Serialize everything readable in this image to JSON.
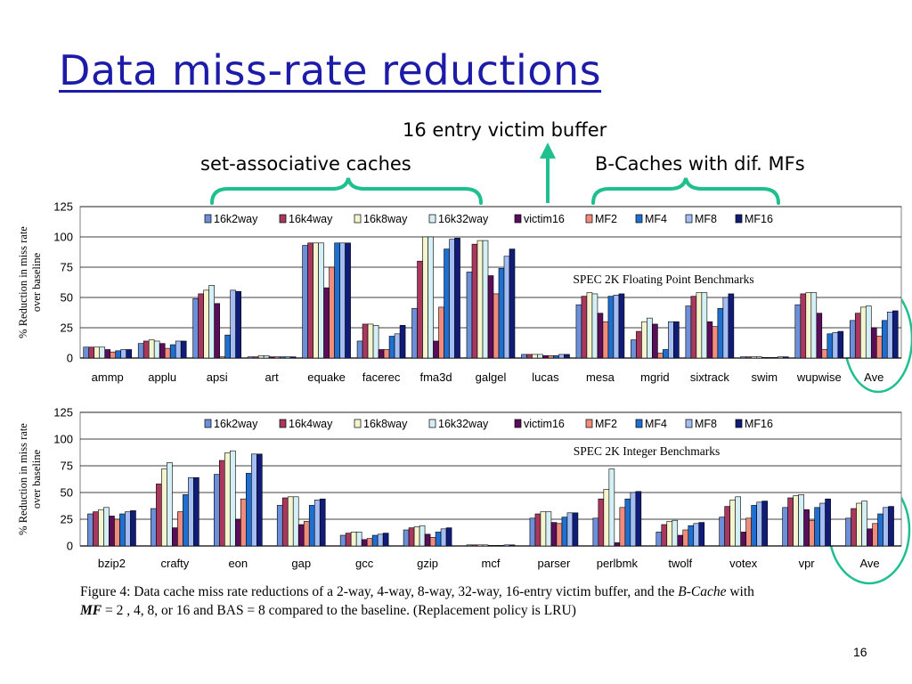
{
  "slide": {
    "title": "Data miss-rate reductions",
    "callouts": {
      "victim": "16 entry victim buffer",
      "set_assoc": "set-associative caches",
      "bcache": "B-Caches with dif. MFs"
    },
    "caption": {
      "line1_a": "Figure 4: Data cache miss rate reductions of a 2-way, 4-way, 8-way, 32-way, 16-entry victim buffer, and the ",
      "line1_em": "B-Cache",
      "line1_b": " with",
      "line2_em": "MF",
      "line2_b": " = 2 , 4, 8, or 16 and BAS = 8 compared to the baseline. (Replacement policy is LRU)"
    },
    "page_number": "16",
    "colors": {
      "title": "#1c1ca8",
      "bracket": "#1fbf8f",
      "highlight": "#1fbf8f"
    }
  },
  "chart_data": [
    {
      "type": "bar",
      "annotation": "SPEC 2K Floating Point Benchmarks",
      "ylabel": "% Reduction in miss rate over baseline",
      "ylim": [
        0,
        125
      ],
      "yticks": [
        "125",
        "100",
        "75",
        "50",
        "25",
        "0"
      ],
      "legend_position": "top",
      "categories": [
        "ammp",
        "applu",
        "apsi",
        "art",
        "equake",
        "facerec",
        "fma3d",
        "galgel",
        "lucas",
        "mesa",
        "mgrid",
        "sixtrack",
        "swim",
        "wupwise",
        "Ave"
      ],
      "series": [
        {
          "name": "16k2way",
          "color": "#6b8fd8",
          "values": [
            9,
            12,
            49,
            1,
            93,
            14,
            41,
            71,
            3,
            44,
            15,
            43,
            1,
            44,
            31
          ]
        },
        {
          "name": "16k4way",
          "color": "#a8385e",
          "values": [
            9,
            14,
            53,
            1,
            95,
            28,
            80,
            94,
            3,
            51,
            22,
            51,
            1,
            53,
            37
          ]
        },
        {
          "name": "16k8way",
          "color": "#f4f4cf",
          "values": [
            9,
            15,
            56,
            2,
            95,
            28,
            100,
            97,
            3,
            54,
            30,
            54,
            1,
            54,
            42
          ]
        },
        {
          "name": "16k32way",
          "color": "#d5f0f5",
          "values": [
            9,
            14,
            60,
            2,
            95,
            27,
            100,
            97,
            3,
            53,
            33,
            54,
            1,
            54,
            43
          ]
        },
        {
          "name": "victim16",
          "color": "#5a0e5a",
          "values": [
            7,
            12,
            45,
            1,
            58,
            7,
            14,
            68,
            2,
            37,
            28,
            30,
            0,
            37,
            25
          ]
        },
        {
          "name": "MF2",
          "color": "#f08c7c",
          "values": [
            5,
            8,
            1,
            1,
            75,
            7,
            42,
            53,
            2,
            30,
            4,
            26,
            0,
            7,
            18
          ]
        },
        {
          "name": "MF4",
          "color": "#1e6fcf",
          "values": [
            6,
            11,
            19,
            1,
            95,
            18,
            90,
            74,
            2,
            51,
            7,
            41,
            0,
            20,
            31
          ]
        },
        {
          "name": "MF8",
          "color": "#a4bdf2",
          "values": [
            7,
            14,
            56,
            1,
            95,
            20,
            98,
            84,
            3,
            52,
            30,
            50,
            1,
            21,
            38
          ]
        },
        {
          "name": "MF16",
          "color": "#101c78",
          "values": [
            7,
            14,
            55,
            1,
            95,
            27,
            99,
            90,
            3,
            53,
            30,
            53,
            1,
            22,
            39
          ]
        }
      ]
    },
    {
      "type": "bar",
      "annotation": "SPEC 2K Integer Benchmarks",
      "ylabel": "% Reduction in miss rate over baseline",
      "ylim": [
        0,
        125
      ],
      "yticks": [
        "125",
        "100",
        "75",
        "50",
        "25",
        "0"
      ],
      "legend_position": "top",
      "categories": [
        "bzip2",
        "crafty",
        "eon",
        "gap",
        "gcc",
        "gzip",
        "mcf",
        "parser",
        "perlbmk",
        "twolf",
        "votex",
        "vpr",
        "Ave"
      ],
      "series": [
        {
          "name": "16k2way",
          "color": "#6b8fd8",
          "values": [
            30,
            35,
            67,
            38,
            10,
            15,
            1,
            26,
            26,
            13,
            27,
            36,
            26
          ]
        },
        {
          "name": "16k4way",
          "color": "#a8385e",
          "values": [
            32,
            58,
            80,
            45,
            12,
            17,
            1,
            30,
            44,
            20,
            37,
            45,
            35
          ]
        },
        {
          "name": "16k8way",
          "color": "#f4f4cf",
          "values": [
            34,
            72,
            87,
            46,
            13,
            18,
            1,
            32,
            53,
            23,
            43,
            47,
            40
          ]
        },
        {
          "name": "16k32way",
          "color": "#d5f0f5",
          "values": [
            36,
            78,
            89,
            46,
            13,
            19,
            1,
            32,
            72,
            24,
            46,
            48,
            42
          ]
        },
        {
          "name": "victim16",
          "color": "#5a0e5a",
          "values": [
            28,
            17,
            25,
            20,
            6,
            11,
            0,
            22,
            3,
            10,
            13,
            34,
            16
          ]
        },
        {
          "name": "MF2",
          "color": "#f08c7c",
          "values": [
            25,
            32,
            44,
            23,
            7,
            8,
            0,
            21,
            36,
            15,
            26,
            24,
            21
          ]
        },
        {
          "name": "MF4",
          "color": "#1e6fcf",
          "values": [
            30,
            48,
            68,
            38,
            10,
            13,
            0,
            27,
            44,
            19,
            38,
            36,
            30
          ]
        },
        {
          "name": "MF8",
          "color": "#a4bdf2",
          "values": [
            32,
            64,
            86,
            43,
            11,
            16,
            1,
            31,
            50,
            21,
            41,
            40,
            36
          ]
        },
        {
          "name": "MF16",
          "color": "#101c78",
          "values": [
            33,
            64,
            86,
            44,
            12,
            17,
            1,
            31,
            51,
            22,
            42,
            44,
            37
          ]
        }
      ]
    }
  ]
}
